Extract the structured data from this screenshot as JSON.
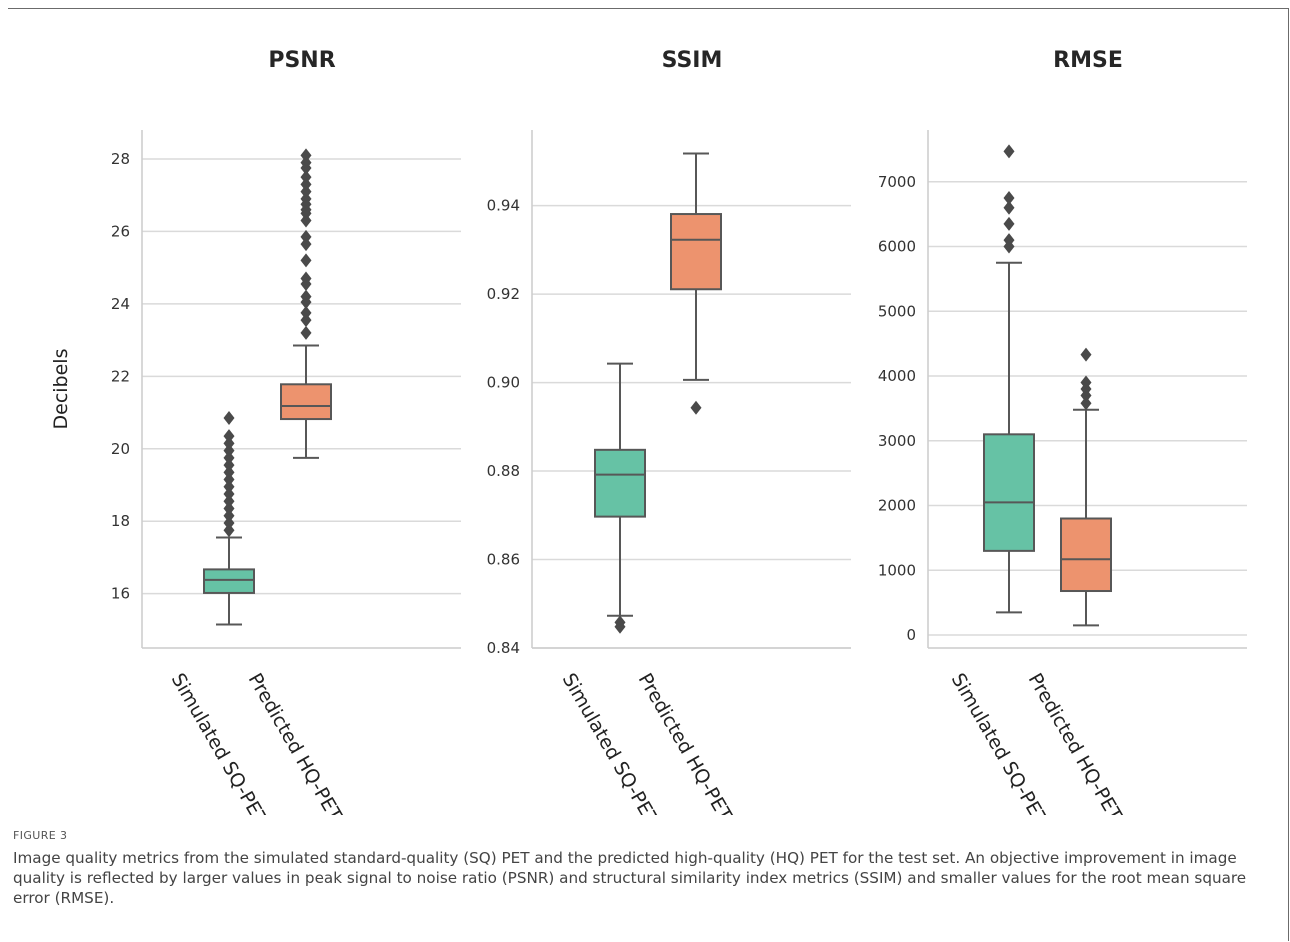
{
  "figure": {
    "label": "FIGURE 3",
    "caption": "Image quality metrics from the simulated standard-quality (SQ) PET and the predicted high-quality (HQ) PET for the test set. An objective improvement in image quality is reflected by larger values in peak signal to noise ratio (PSNR) and structural similarity index metrics (SSIM) and smaller values for the root mean square error (RMSE)."
  },
  "colors": {
    "simulated": "#66c2a5",
    "predicted": "#ed936e",
    "box_edge": "#575757",
    "grid": "#dadada",
    "axis": "#cccccc"
  },
  "chart_data": [
    {
      "type": "box",
      "title": "PSNR",
      "ylabel": "Decibels",
      "categories": [
        "Simulated SQ-PET",
        "Predicted HQ-PET"
      ],
      "ylim": [
        14.5,
        28.8
      ],
      "yticks": [
        16,
        18,
        20,
        22,
        24,
        26,
        28
      ],
      "grid": true,
      "boxes": [
        {
          "whislo": 15.15,
          "q1": 16.02,
          "med": 16.38,
          "q3": 16.67,
          "whishi": 17.55,
          "fliers": [
            17.75,
            17.95,
            18.15,
            18.35,
            18.55,
            18.75,
            18.95,
            19.15,
            19.35,
            19.55,
            19.75,
            19.95,
            20.15,
            20.35,
            20.85
          ]
        },
        {
          "whislo": 19.75,
          "q1": 20.82,
          "med": 21.18,
          "q3": 21.78,
          "whishi": 22.85,
          "fliers": [
            23.2,
            23.55,
            23.75,
            24.05,
            24.2,
            24.55,
            24.7,
            25.2,
            25.65,
            25.85,
            26.3,
            26.5,
            26.6,
            26.75,
            26.9,
            27.1,
            27.3,
            27.5,
            27.75,
            27.9,
            28.1
          ]
        }
      ]
    },
    {
      "type": "box",
      "title": "SSIM",
      "ylabel": "",
      "categories": [
        "Simulated SQ-PET",
        "Predicted HQ-PET"
      ],
      "ylim": [
        0.84,
        0.9571
      ],
      "yticks": [
        0.84,
        0.86,
        0.88,
        0.9,
        0.92,
        0.94
      ],
      "ytick_labels": [
        "0.84",
        "0.86",
        "0.88",
        "0.90",
        "0.92",
        "0.94"
      ],
      "grid": true,
      "boxes": [
        {
          "whislo": 0.8473,
          "q1": 0.8697,
          "med": 0.8792,
          "q3": 0.8848,
          "whishi": 0.9043,
          "fliers": [
            0.8458,
            0.8448
          ]
        },
        {
          "whislo": 0.9006,
          "q1": 0.9211,
          "med": 0.9323,
          "q3": 0.9381,
          "whishi": 0.9518,
          "fliers": [
            0.8943
          ]
        }
      ]
    },
    {
      "type": "box",
      "title": "RMSE",
      "ylabel": "",
      "categories": [
        "Simulated SQ-PET",
        "Predicted HQ-PET"
      ],
      "ylim": [
        -200,
        7800
      ],
      "yticks": [
        0,
        1000,
        2000,
        3000,
        4000,
        5000,
        6000,
        7000
      ],
      "grid": true,
      "boxes": [
        {
          "whislo": 350,
          "q1": 1300,
          "med": 2050,
          "q3": 3100,
          "whishi": 5750,
          "fliers": [
            6000,
            6100,
            6350,
            6600,
            6750,
            7470
          ]
        },
        {
          "whislo": 150,
          "q1": 680,
          "med": 1170,
          "q3": 1800,
          "whishi": 3480,
          "fliers": [
            3580,
            3700,
            3800,
            3900,
            4330
          ]
        }
      ]
    }
  ]
}
